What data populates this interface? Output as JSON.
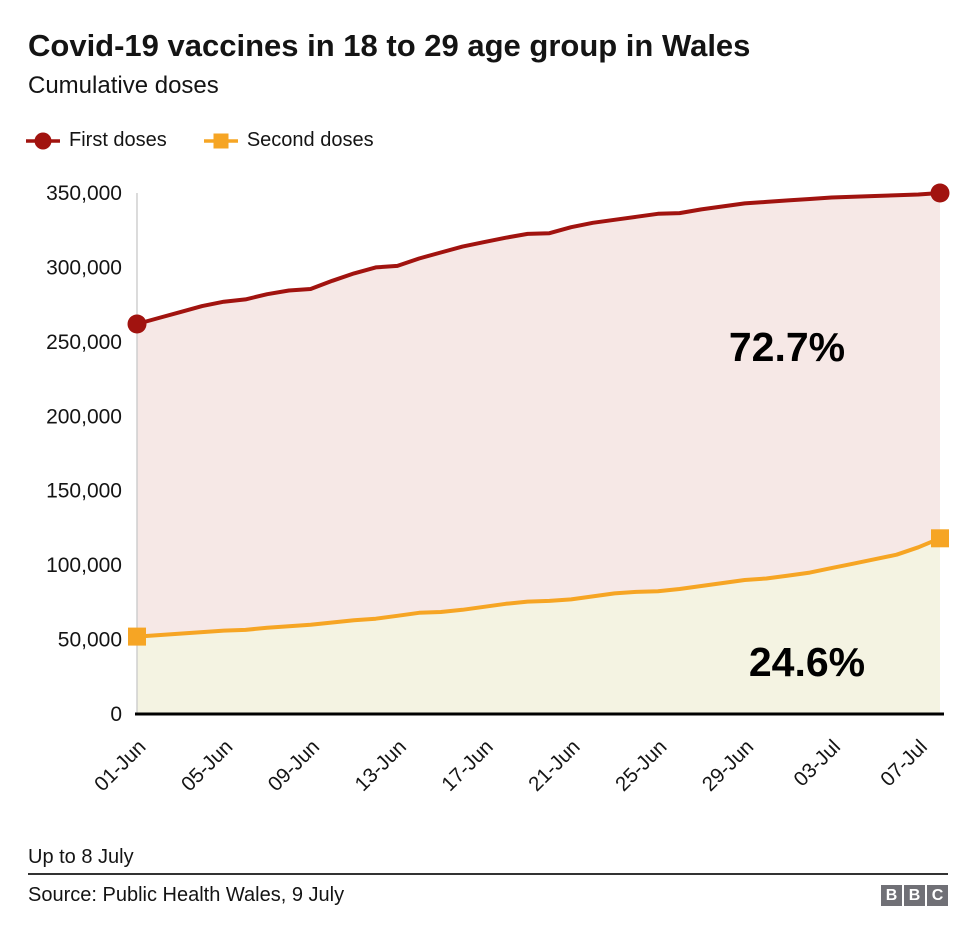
{
  "header": {
    "title": "Covid-19 vaccines in 18 to 29 age group in Wales",
    "subtitle": "Cumulative doses"
  },
  "legend": {
    "items": [
      {
        "label": "First doses",
        "color": "#a1130f",
        "marker": "circle"
      },
      {
        "label": "Second doses",
        "color": "#f6a524",
        "marker": "square"
      }
    ]
  },
  "chart_data": {
    "type": "area",
    "title": "Covid-19 vaccines in 18 to 29 age group in Wales",
    "subtitle": "Cumulative doses",
    "xlabel": "",
    "ylabel": "",
    "ylim": [
      0,
      350000
    ],
    "grid": false,
    "legend_position": "top",
    "x": [
      "01-Jun",
      "02-Jun",
      "03-Jun",
      "04-Jun",
      "05-Jun",
      "06-Jun",
      "07-Jun",
      "08-Jun",
      "09-Jun",
      "10-Jun",
      "11-Jun",
      "12-Jun",
      "13-Jun",
      "14-Jun",
      "15-Jun",
      "16-Jun",
      "17-Jun",
      "18-Jun",
      "19-Jun",
      "20-Jun",
      "21-Jun",
      "22-Jun",
      "23-Jun",
      "24-Jun",
      "25-Jun",
      "26-Jun",
      "27-Jun",
      "28-Jun",
      "29-Jun",
      "30-Jun",
      "01-Jul",
      "02-Jul",
      "03-Jul",
      "04-Jul",
      "05-Jul",
      "06-Jul",
      "07-Jul",
      "08-Jul"
    ],
    "series": [
      {
        "name": "First doses",
        "color": "#a1130f",
        "fill": "#f6e8e6",
        "marker": "circle",
        "values": [
          262000,
          266000,
          270000,
          274000,
          277000,
          278500,
          282000,
          284500,
          285500,
          291000,
          296000,
          300000,
          301000,
          306000,
          310000,
          314000,
          317000,
          320000,
          322500,
          323000,
          327000,
          330000,
          332000,
          334000,
          336000,
          336500,
          339000,
          341000,
          343000,
          344000,
          345000,
          346000,
          347000,
          347500,
          348000,
          348500,
          349000,
          350000
        ]
      },
      {
        "name": "Second doses",
        "color": "#f6a524",
        "fill": "#f4f3e2",
        "marker": "square",
        "values": [
          52000,
          53000,
          54000,
          55000,
          56000,
          56500,
          58000,
          59000,
          60000,
          61500,
          63000,
          64000,
          66000,
          68000,
          68500,
          70000,
          72000,
          74000,
          75500,
          76000,
          77000,
          79000,
          81000,
          82000,
          82500,
          84000,
          86000,
          88000,
          90000,
          91000,
          93000,
          95000,
          98000,
          101000,
          104000,
          107000,
          112000,
          118000
        ]
      }
    ],
    "yticks": [
      {
        "value": 0,
        "label": "0"
      },
      {
        "value": 50000,
        "label": "50,000"
      },
      {
        "value": 100000,
        "label": "100,000"
      },
      {
        "value": 150000,
        "label": "150,000"
      },
      {
        "value": 200000,
        "label": "200,000"
      },
      {
        "value": 250000,
        "label": "250,000"
      },
      {
        "value": 300000,
        "label": "300,000"
      },
      {
        "value": 350000,
        "label": "350,000"
      }
    ],
    "xticks": [
      {
        "index": 0,
        "label": "01-Jun"
      },
      {
        "index": 4,
        "label": "05-Jun"
      },
      {
        "index": 8,
        "label": "09-Jun"
      },
      {
        "index": 12,
        "label": "13-Jun"
      },
      {
        "index": 16,
        "label": "17-Jun"
      },
      {
        "index": 20,
        "label": "21-Jun"
      },
      {
        "index": 24,
        "label": "25-Jun"
      },
      {
        "index": 28,
        "label": "29-Jun"
      },
      {
        "index": 32,
        "label": "03-Jul"
      },
      {
        "index": 36,
        "label": "07-Jul"
      }
    ],
    "annotations": [
      {
        "text": "72.7%",
        "series": "First doses"
      },
      {
        "text": "24.6%",
        "series": "Second doses"
      }
    ]
  },
  "footer": {
    "note": "Up to 8 July",
    "source": "Source: Public Health Wales, 9 July",
    "logo_letters": [
      "B",
      "B",
      "C"
    ],
    "logo_color": "#707076"
  },
  "colors": {
    "first_doses_line": "#a1130f",
    "first_doses_fill": "#f6e8e6",
    "second_doses_line": "#f6a524",
    "second_doses_fill": "#f4f3e2",
    "axis": "#000000",
    "y_axis_line": "#cccccc",
    "text": "#141414"
  }
}
